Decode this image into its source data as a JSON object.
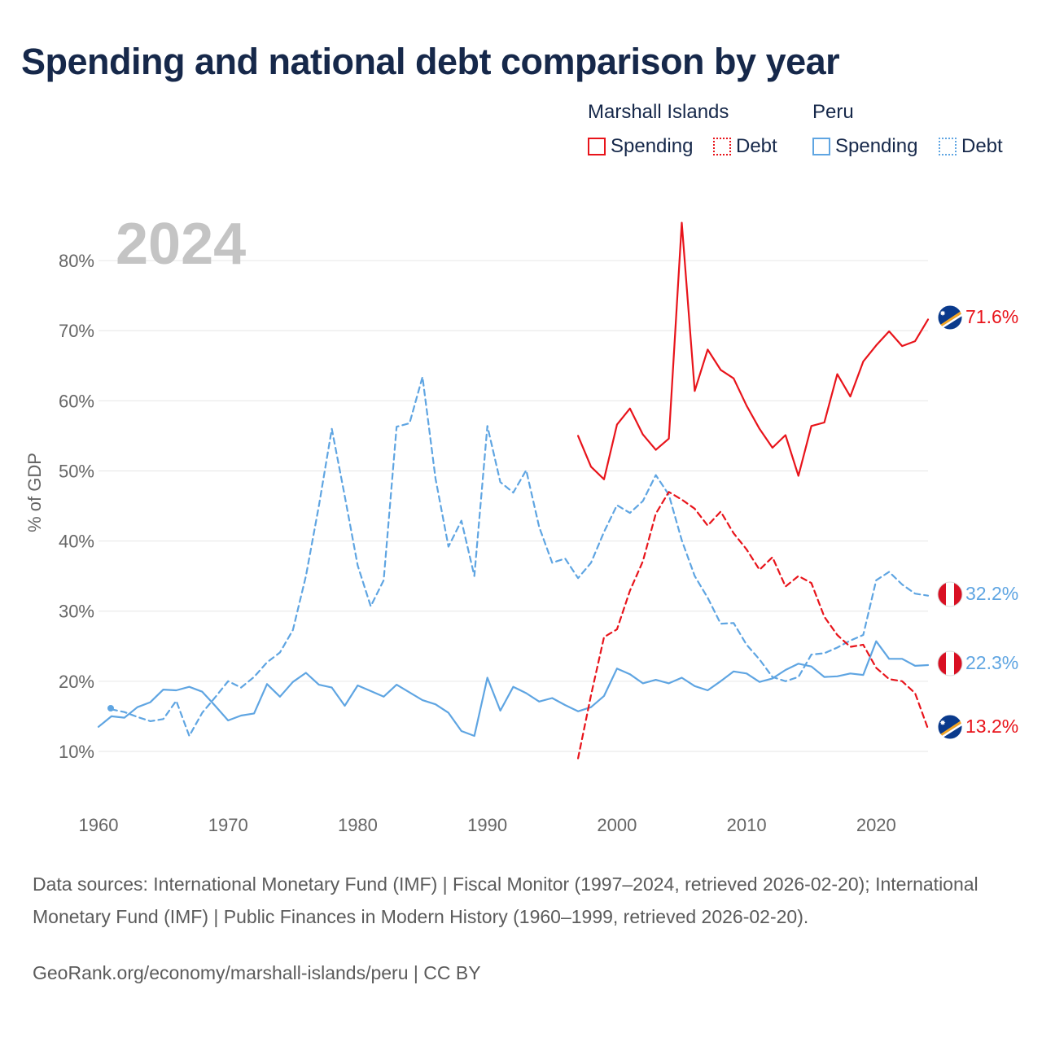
{
  "title": "Spending and national debt comparison by year",
  "legend": {
    "groups": [
      {
        "name": "Marshall Islands",
        "color": "#e8141b",
        "items": [
          {
            "label": "Spending",
            "style": "solid"
          },
          {
            "label": "Debt",
            "style": "dotted"
          }
        ]
      },
      {
        "name": "Peru",
        "color": "#5fa5e2",
        "items": [
          {
            "label": "Spending",
            "style": "solid"
          },
          {
            "label": "Debt",
            "style": "dotted"
          }
        ]
      }
    ]
  },
  "year_label": "2024",
  "source_text": "Data sources: International Monetary Fund (IMF) | Fiscal Monitor (1997–2024, retrieved 2026-02-20); International Monetary Fund (IMF) | Public Finances in Modern History (1960–1999, retrieved 2026-02-20).",
  "credit_text": "GeoRank.org/economy/marshall-islands/peru | CC BY",
  "chart_data": {
    "type": "line",
    "title": "Spending and national debt comparison by year",
    "xlabel": "",
    "ylabel": "% of GDP",
    "xlim": [
      1960,
      2024
    ],
    "ylim": [
      5,
      85
    ],
    "x_ticks": [
      1960,
      1970,
      1980,
      1990,
      2000,
      2010,
      2020
    ],
    "x_tick_labels": [
      "1960",
      "1970",
      "1980",
      "1990",
      "2000",
      "2010",
      "2020"
    ],
    "y_ticks": [
      10,
      20,
      30,
      40,
      50,
      60,
      70,
      80
    ],
    "y_tick_labels": [
      "10%",
      "20%",
      "30%",
      "40%",
      "50%",
      "60%",
      "70%",
      "80%"
    ],
    "grid": true,
    "series": [
      {
        "name": "Peru Debt",
        "country": "Peru",
        "measure": "Debt",
        "color": "#5fa5e2",
        "dashed": true,
        "end_label": "32.2%",
        "x": [
          1961,
          1962,
          1963,
          1964,
          1965,
          1966,
          1967,
          1968,
          1969,
          1970,
          1971,
          1972,
          1973,
          1974,
          1975,
          1976,
          1977,
          1978,
          1979,
          1980,
          1981,
          1982,
          1983,
          1984,
          1985,
          1986,
          1987,
          1988,
          1989,
          1990,
          1991,
          1992,
          1993,
          1994,
          1995,
          1996,
          1997,
          1998,
          1999,
          2000,
          2001,
          2002,
          2003,
          2004,
          2005,
          2006,
          2007,
          2008,
          2009,
          2010,
          2011,
          2012,
          2013,
          2014,
          2015,
          2016,
          2017,
          2018,
          2019,
          2020,
          2021,
          2022,
          2023,
          2024
        ],
        "values": [
          16.0,
          15.6,
          14.9,
          14.3,
          14.6,
          17.2,
          12.2,
          15.5,
          17.7,
          20.0,
          19.1,
          20.6,
          22.7,
          24.1,
          27.3,
          35.0,
          45.0,
          56.0,
          46.4,
          36.5,
          30.7,
          34.4,
          56.3,
          56.8,
          63.4,
          48.9,
          39.2,
          42.9,
          35.0,
          56.4,
          48.4,
          46.9,
          50.1,
          42.0,
          36.9,
          37.5,
          34.7,
          36.9,
          41.3,
          45.1,
          44.0,
          45.7,
          49.4,
          46.6,
          40.1,
          35.0,
          31.9,
          28.2,
          28.3,
          25.2,
          23.1,
          20.6,
          20.0,
          20.6,
          23.8,
          24.0,
          24.8,
          25.8,
          26.6,
          34.4,
          35.6,
          33.8,
          32.5,
          32.2
        ]
      },
      {
        "name": "Peru Spending",
        "country": "Peru",
        "measure": "Spending",
        "color": "#5fa5e2",
        "dashed": false,
        "end_label": "22.3%",
        "x": [
          1960,
          1961,
          1962,
          1963,
          1964,
          1965,
          1966,
          1967,
          1968,
          1969,
          1970,
          1971,
          1972,
          1973,
          1974,
          1975,
          1976,
          1977,
          1978,
          1979,
          1980,
          1981,
          1982,
          1983,
          1984,
          1985,
          1986,
          1987,
          1988,
          1989,
          1990,
          1991,
          1992,
          1993,
          1994,
          1995,
          1996,
          1997,
          1998,
          1999,
          2000,
          2001,
          2002,
          2003,
          2004,
          2005,
          2006,
          2007,
          2008,
          2009,
          2010,
          2011,
          2012,
          2013,
          2014,
          2015,
          2016,
          2017,
          2018,
          2019,
          2020,
          2021,
          2022,
          2023,
          2024
        ],
        "values": [
          13.5,
          15.0,
          14.8,
          16.3,
          17.0,
          18.8,
          18.7,
          19.2,
          18.5,
          16.5,
          14.4,
          15.1,
          15.4,
          19.6,
          17.8,
          19.9,
          21.2,
          19.5,
          19.1,
          16.5,
          19.4,
          18.6,
          17.8,
          19.5,
          18.4,
          17.3,
          16.7,
          15.5,
          12.9,
          12.2,
          20.5,
          15.8,
          19.2,
          18.3,
          17.1,
          17.6,
          16.6,
          15.7,
          16.3,
          17.9,
          21.8,
          21.0,
          19.7,
          20.2,
          19.7,
          20.5,
          19.3,
          18.7,
          20.0,
          21.4,
          21.1,
          19.9,
          20.4,
          21.6,
          22.5,
          22.1,
          20.6,
          20.7,
          21.1,
          20.9,
          25.7,
          23.2,
          23.2,
          22.2,
          22.3
        ]
      },
      {
        "name": "Marshall Islands Spending",
        "country": "Marshall Islands",
        "measure": "Spending",
        "color": "#e8141b",
        "dashed": false,
        "end_label": "71.6%",
        "x": [
          1997,
          1998,
          1999,
          2000,
          2001,
          2002,
          2003,
          2004,
          2005,
          2006,
          2007,
          2008,
          2009,
          2010,
          2011,
          2012,
          2013,
          2014,
          2015,
          2016,
          2017,
          2018,
          2019,
          2020,
          2021,
          2022,
          2023,
          2024
        ],
        "values": [
          55.0,
          50.6,
          48.8,
          56.6,
          58.9,
          55.2,
          53.0,
          54.6,
          85.4,
          61.4,
          67.3,
          64.4,
          63.2,
          59.3,
          56.0,
          53.3,
          55.1,
          49.3,
          56.4,
          56.9,
          63.8,
          60.6,
          65.6,
          67.9,
          69.9,
          67.8,
          68.5,
          71.6
        ]
      },
      {
        "name": "Marshall Islands Debt",
        "country": "Marshall Islands",
        "measure": "Debt",
        "color": "#e8141b",
        "dashed": true,
        "end_label": "13.2%",
        "x": [
          1997,
          1998,
          1999,
          2000,
          2001,
          2002,
          2003,
          2004,
          2005,
          2006,
          2007,
          2008,
          2009,
          2010,
          2011,
          2012,
          2013,
          2014,
          2015,
          2016,
          2017,
          2018,
          2019,
          2020,
          2021,
          2022,
          2023,
          2024
        ],
        "values": [
          9.0,
          18.0,
          26.3,
          27.4,
          32.9,
          37.1,
          43.9,
          47.0,
          45.9,
          44.6,
          42.2,
          44.2,
          41.1,
          38.8,
          35.9,
          37.7,
          33.5,
          35.0,
          34.0,
          29.2,
          26.6,
          24.9,
          25.2,
          21.9,
          20.3,
          20.0,
          18.3,
          13.2
        ]
      }
    ]
  }
}
